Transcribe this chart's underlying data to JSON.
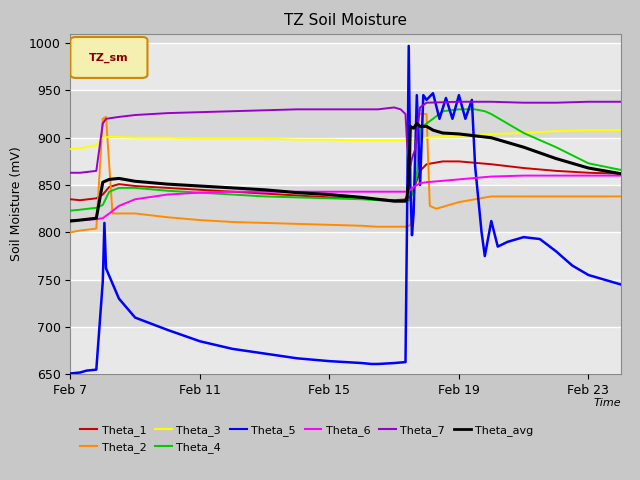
{
  "title": "TZ Soil Moisture",
  "xlabel": "Time",
  "ylabel": "Soil Moisture (mV)",
  "ylim": [
    650,
    1010
  ],
  "xlim": [
    0,
    17
  ],
  "background_color": "#d8d8d8",
  "plot_bg_color": "#e0e0e0",
  "xtick_labels": [
    "Feb 7",
    "Feb 11",
    "Feb 15",
    "Feb 19",
    "Feb 23"
  ],
  "xtick_positions": [
    0,
    4,
    8,
    12,
    16
  ],
  "ytick_positions": [
    650,
    700,
    750,
    800,
    850,
    900,
    950,
    1000
  ],
  "legend_label": "TZ_sm",
  "series": {
    "Theta_1": {
      "color": "#cc0000",
      "points": [
        [
          0,
          835
        ],
        [
          0.3,
          834
        ],
        [
          0.8,
          836
        ],
        [
          1.0,
          840
        ],
        [
          1.2,
          848
        ],
        [
          1.5,
          851
        ],
        [
          2.0,
          849
        ],
        [
          3.0,
          847
        ],
        [
          4.0,
          845
        ],
        [
          5.0,
          843
        ],
        [
          6.0,
          841
        ],
        [
          7.0,
          839
        ],
        [
          8.0,
          837
        ],
        [
          9.0,
          836
        ],
        [
          9.5,
          835
        ],
        [
          10.0,
          834
        ],
        [
          10.4,
          835
        ],
        [
          10.5,
          838
        ],
        [
          10.6,
          845
        ],
        [
          10.8,
          865
        ],
        [
          11.0,
          872
        ],
        [
          11.5,
          875
        ],
        [
          12.0,
          875
        ],
        [
          13.0,
          872
        ],
        [
          14.0,
          868
        ],
        [
          15.0,
          865
        ],
        [
          16.0,
          863
        ],
        [
          17.0,
          862
        ]
      ]
    },
    "Theta_2": {
      "color": "#ff8c00",
      "points": [
        [
          0,
          800
        ],
        [
          0.3,
          802
        ],
        [
          0.8,
          804
        ],
        [
          1.0,
          920
        ],
        [
          1.1,
          922
        ],
        [
          1.3,
          820
        ],
        [
          2.0,
          820
        ],
        [
          3.0,
          816
        ],
        [
          4.0,
          813
        ],
        [
          5.0,
          811
        ],
        [
          6.0,
          810
        ],
        [
          7.0,
          809
        ],
        [
          8.0,
          808
        ],
        [
          9.0,
          807
        ],
        [
          9.5,
          806
        ],
        [
          10.0,
          806
        ],
        [
          10.4,
          806
        ],
        [
          10.5,
          808
        ],
        [
          10.6,
          820
        ],
        [
          10.7,
          925
        ],
        [
          10.8,
          925
        ],
        [
          11.0,
          925
        ],
        [
          11.1,
          828
        ],
        [
          11.3,
          825
        ],
        [
          12.0,
          832
        ],
        [
          13.0,
          838
        ],
        [
          14.0,
          838
        ],
        [
          15.0,
          838
        ],
        [
          16.0,
          838
        ],
        [
          17.0,
          838
        ]
      ]
    },
    "Theta_3": {
      "color": "#ffff00",
      "points": [
        [
          0,
          888
        ],
        [
          0.3,
          889
        ],
        [
          0.8,
          892
        ],
        [
          1.0,
          900
        ],
        [
          1.2,
          901
        ],
        [
          2.0,
          900
        ],
        [
          3.0,
          900
        ],
        [
          4.0,
          899
        ],
        [
          5.0,
          899
        ],
        [
          6.0,
          899
        ],
        [
          7.0,
          898
        ],
        [
          8.0,
          898
        ],
        [
          9.0,
          897
        ],
        [
          9.5,
          897
        ],
        [
          10.0,
          897
        ],
        [
          10.4,
          897
        ],
        [
          10.5,
          897
        ],
        [
          10.6,
          898
        ],
        [
          10.8,
          899
        ],
        [
          11.0,
          900
        ],
        [
          11.5,
          901
        ],
        [
          12.0,
          902
        ],
        [
          13.0,
          904
        ],
        [
          14.0,
          905
        ],
        [
          15.0,
          907
        ],
        [
          16.0,
          908
        ],
        [
          17.0,
          908
        ]
      ]
    },
    "Theta_4": {
      "color": "#00cc00",
      "points": [
        [
          0,
          823
        ],
        [
          0.3,
          824
        ],
        [
          0.8,
          826
        ],
        [
          1.0,
          829
        ],
        [
          1.2,
          843
        ],
        [
          1.5,
          847
        ],
        [
          2.0,
          847
        ],
        [
          3.0,
          844
        ],
        [
          4.0,
          842
        ],
        [
          5.0,
          840
        ],
        [
          6.0,
          838
        ],
        [
          7.0,
          837
        ],
        [
          8.0,
          836
        ],
        [
          9.0,
          835
        ],
        [
          9.5,
          834
        ],
        [
          10.0,
          833
        ],
        [
          10.4,
          833
        ],
        [
          10.5,
          835
        ],
        [
          10.6,
          845
        ],
        [
          10.7,
          860
        ],
        [
          10.8,
          910
        ],
        [
          11.0,
          915
        ],
        [
          11.2,
          920
        ],
        [
          11.5,
          928
        ],
        [
          12.0,
          930
        ],
        [
          12.5,
          930
        ],
        [
          12.8,
          928
        ],
        [
          13.0,
          925
        ],
        [
          13.5,
          915
        ],
        [
          14.0,
          905
        ],
        [
          15.0,
          890
        ],
        [
          16.0,
          873
        ],
        [
          17.0,
          866
        ]
      ]
    },
    "Theta_5": {
      "color": "#0000ff",
      "points": [
        [
          0,
          651
        ],
        [
          0.3,
          652
        ],
        [
          0.5,
          654
        ],
        [
          0.8,
          655
        ],
        [
          1.0,
          748
        ],
        [
          1.05,
          810
        ],
        [
          1.1,
          762
        ],
        [
          1.5,
          730
        ],
        [
          2.0,
          710
        ],
        [
          3.0,
          697
        ],
        [
          4.0,
          685
        ],
        [
          5.0,
          677
        ],
        [
          6.0,
          672
        ],
        [
          7.0,
          667
        ],
        [
          8.0,
          664
        ],
        [
          9.0,
          662
        ],
        [
          9.3,
          661
        ],
        [
          9.5,
          661
        ],
        [
          10.0,
          662
        ],
        [
          10.35,
          663
        ],
        [
          10.4,
          820
        ],
        [
          10.45,
          997
        ],
        [
          10.5,
          850
        ],
        [
          10.55,
          797
        ],
        [
          10.6,
          820
        ],
        [
          10.7,
          945
        ],
        [
          10.8,
          850
        ],
        [
          10.9,
          945
        ],
        [
          11.0,
          940
        ],
        [
          11.2,
          947
        ],
        [
          11.4,
          920
        ],
        [
          11.6,
          942
        ],
        [
          11.8,
          920
        ],
        [
          12.0,
          945
        ],
        [
          12.2,
          920
        ],
        [
          12.4,
          940
        ],
        [
          12.5,
          870
        ],
        [
          12.7,
          800
        ],
        [
          12.8,
          775
        ],
        [
          13.0,
          812
        ],
        [
          13.2,
          785
        ],
        [
          13.5,
          790
        ],
        [
          14.0,
          795
        ],
        [
          14.5,
          793
        ],
        [
          15.0,
          780
        ],
        [
          15.5,
          765
        ],
        [
          16.0,
          755
        ],
        [
          17.0,
          745
        ]
      ]
    },
    "Theta_6": {
      "color": "#ff00ff",
      "points": [
        [
          0,
          813
        ],
        [
          0.3,
          813
        ],
        [
          0.8,
          814
        ],
        [
          1.0,
          815
        ],
        [
          1.2,
          820
        ],
        [
          1.5,
          828
        ],
        [
          2.0,
          835
        ],
        [
          3.0,
          840
        ],
        [
          4.0,
          842
        ],
        [
          5.0,
          843
        ],
        [
          6.0,
          843
        ],
        [
          7.0,
          843
        ],
        [
          8.0,
          843
        ],
        [
          9.0,
          843
        ],
        [
          9.5,
          843
        ],
        [
          10.0,
          843
        ],
        [
          10.4,
          843
        ],
        [
          10.5,
          845
        ],
        [
          10.6,
          848
        ],
        [
          10.8,
          852
        ],
        [
          11.0,
          853
        ],
        [
          12.0,
          856
        ],
        [
          13.0,
          859
        ],
        [
          14.0,
          860
        ],
        [
          15.0,
          860
        ],
        [
          16.0,
          860
        ],
        [
          17.0,
          860
        ]
      ]
    },
    "Theta_7": {
      "color": "#9900cc",
      "points": [
        [
          0,
          863
        ],
        [
          0.3,
          863
        ],
        [
          0.8,
          865
        ],
        [
          1.0,
          915
        ],
        [
          1.1,
          920
        ],
        [
          1.5,
          922
        ],
        [
          2.0,
          924
        ],
        [
          3.0,
          926
        ],
        [
          4.0,
          927
        ],
        [
          5.0,
          928
        ],
        [
          6.0,
          929
        ],
        [
          7.0,
          930
        ],
        [
          8.0,
          930
        ],
        [
          9.0,
          930
        ],
        [
          9.5,
          930
        ],
        [
          10.0,
          932
        ],
        [
          10.2,
          930
        ],
        [
          10.35,
          925
        ],
        [
          10.4,
          893
        ],
        [
          10.45,
          878
        ],
        [
          10.5,
          870
        ],
        [
          10.55,
          878
        ],
        [
          10.65,
          888
        ],
        [
          10.8,
          932
        ],
        [
          11.0,
          937
        ],
        [
          12.0,
          938
        ],
        [
          13.0,
          938
        ],
        [
          14.0,
          937
        ],
        [
          15.0,
          937
        ],
        [
          16.0,
          938
        ],
        [
          17.0,
          938
        ]
      ]
    },
    "Theta_avg": {
      "color": "#000000",
      "points": [
        [
          0,
          812
        ],
        [
          0.3,
          813
        ],
        [
          0.8,
          815
        ],
        [
          1.0,
          853
        ],
        [
          1.2,
          856
        ],
        [
          1.5,
          857
        ],
        [
          2.0,
          854
        ],
        [
          3.0,
          851
        ],
        [
          4.0,
          849
        ],
        [
          5.0,
          847
        ],
        [
          6.0,
          845
        ],
        [
          7.0,
          842
        ],
        [
          8.0,
          840
        ],
        [
          9.0,
          837
        ],
        [
          9.5,
          835
        ],
        [
          10.0,
          833
        ],
        [
          10.35,
          833
        ],
        [
          10.4,
          838
        ],
        [
          10.45,
          855
        ],
        [
          10.5,
          912
        ],
        [
          10.6,
          910
        ],
        [
          10.7,
          915
        ],
        [
          10.8,
          912
        ],
        [
          11.0,
          912
        ],
        [
          11.2,
          908
        ],
        [
          11.5,
          905
        ],
        [
          12.0,
          904
        ],
        [
          13.0,
          900
        ],
        [
          14.0,
          890
        ],
        [
          15.0,
          878
        ],
        [
          16.0,
          868
        ],
        [
          17.0,
          862
        ]
      ]
    }
  }
}
